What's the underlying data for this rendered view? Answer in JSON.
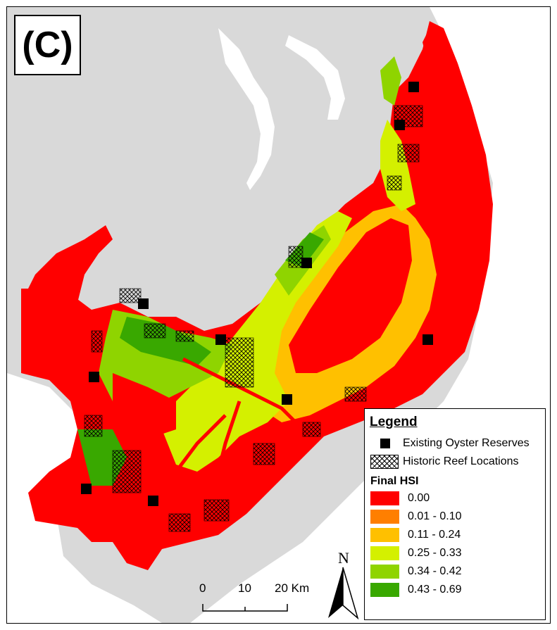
{
  "panel_label": "(C)",
  "colors": {
    "land": "#d9d9d9",
    "water_base": "#f2f2f2",
    "hsi_0": "#ff0000",
    "hsi_1": "#ff7f00",
    "hsi_2": "#ffc000",
    "hsi_3": "#d4f000",
    "hsi_4": "#8fd400",
    "hsi_5": "#39a800"
  },
  "legend": {
    "title": "Legend",
    "reserves_label": "Existing Oyster Reserves",
    "reefs_label": "Historic Reef Locations",
    "hsi_title": "Final HSI",
    "hsi_classes": [
      {
        "label": "0.00",
        "color": "#ff0000"
      },
      {
        "label": "0.01 - 0.10",
        "color": "#ff7f00"
      },
      {
        "label": "0.11 - 0.24",
        "color": "#ffc000"
      },
      {
        "label": "0.25 - 0.33",
        "color": "#d4f000"
      },
      {
        "label": "0.34 - 0.42",
        "color": "#8fd400"
      },
      {
        "label": "0.43 - 0.69",
        "color": "#39a800"
      }
    ]
  },
  "scale_bar": {
    "labels": [
      "0",
      "10",
      "20 Km"
    ]
  },
  "north_arrow": {
    "label": "N"
  },
  "oyster_reserves_count": 10
}
